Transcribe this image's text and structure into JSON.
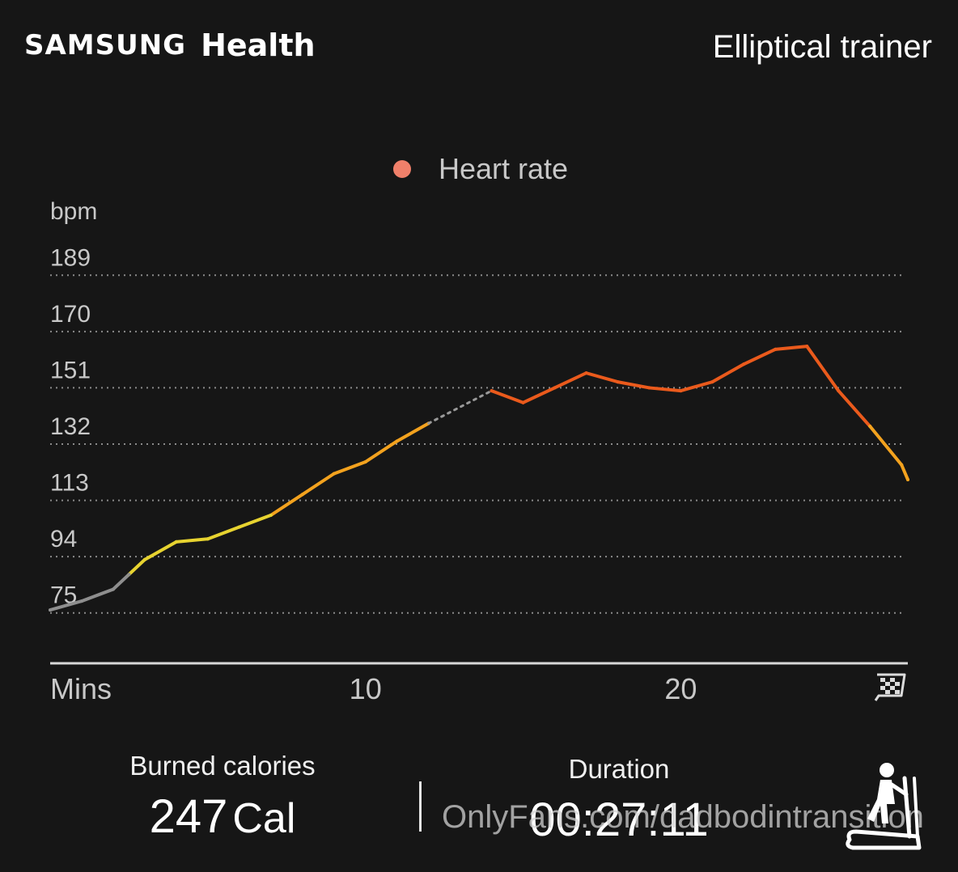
{
  "header": {
    "brand_logo": "SAMSUNG",
    "brand_app": "Health",
    "activity": "Elliptical trainer"
  },
  "legend": {
    "label": "Heart rate",
    "color": "#f0806a"
  },
  "stats": {
    "calories": {
      "label": "Burned calories",
      "value": "247",
      "unit": "Cal"
    },
    "duration": {
      "label": "Duration",
      "value": "00:27:11"
    }
  },
  "watermark": "OnlyFans.com/dadbodintransition",
  "icons": {
    "finish": "checkered-flag-icon",
    "activity": "elliptical-trainer-icon"
  },
  "chart_data": {
    "type": "line",
    "ylabel": "bpm",
    "xlabel": "Mins",
    "y_ticks": [
      189,
      170,
      151,
      132,
      113,
      94,
      75
    ],
    "x_ticks": [
      10,
      20
    ],
    "xlim": [
      0,
      27.2
    ],
    "ylim": [
      58,
      200
    ],
    "grid": true,
    "series": [
      {
        "name": "Heart rate",
        "segments": [
          {
            "points": [
              [
                0,
                76
              ],
              [
                1,
                79
              ],
              [
                2,
                83
              ],
              [
                2.5,
                88
              ],
              [
                3,
                93
              ],
              [
                4,
                99
              ],
              [
                5,
                100
              ],
              [
                6,
                104
              ],
              [
                7,
                108
              ],
              [
                8,
                115
              ],
              [
                9,
                122
              ],
              [
                10,
                126
              ],
              [
                11,
                133
              ],
              [
                12,
                139
              ]
            ]
          },
          {
            "gap": true,
            "points": [
              [
                12,
                139
              ],
              [
                14,
                150
              ]
            ]
          },
          {
            "points": [
              [
                14,
                150
              ],
              [
                15,
                146
              ],
              [
                16,
                151
              ],
              [
                17,
                156
              ],
              [
                18,
                153
              ],
              [
                19,
                151
              ],
              [
                20,
                150
              ],
              [
                21,
                153
              ],
              [
                22,
                159
              ],
              [
                23,
                164
              ],
              [
                24,
                165
              ],
              [
                25,
                150
              ],
              [
                26,
                138
              ],
              [
                27,
                125
              ],
              [
                27.2,
                120
              ]
            ]
          }
        ]
      }
    ],
    "zone_colors": {
      "rest": "#8e8e8e",
      "light": "#e7d330",
      "moderate": "#f3a21e",
      "vigorous": "#ea5a1c"
    }
  }
}
